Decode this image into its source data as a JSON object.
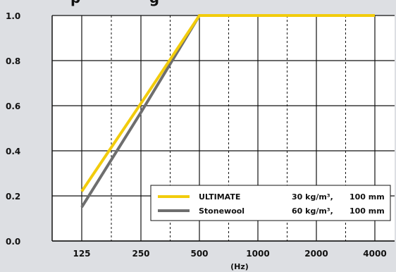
{
  "chart_data": {
    "type": "line",
    "title_fragment": "p              g",
    "xlabel": "(Hz)",
    "ylabel": "",
    "categories": [
      "125",
      "250",
      "500",
      "1000",
      "2000",
      "4000"
    ],
    "yticks": [
      "0.0",
      "0.2",
      "0.4",
      "0.6",
      "0.8",
      "1.0"
    ],
    "ylim": [
      0,
      1
    ],
    "grid": true,
    "legend_position": "bottom-right",
    "series": [
      {
        "name": "ULTIMATE",
        "density": "30 kg/m³,",
        "thickness": "100 mm",
        "color": "#f2cc0c",
        "values": [
          0.22,
          0.61,
          1.0,
          1.0,
          1.0,
          1.0
        ]
      },
      {
        "name": "Stonewool",
        "density": "60 kg/m³,",
        "thickness": "100 mm",
        "color": "#6e6e6e",
        "values": [
          0.15,
          0.57,
          1.0,
          1.0,
          1.0,
          1.0
        ]
      }
    ]
  },
  "style": {
    "plot_bg": "#ffffff",
    "page_bg": "#dddfe3",
    "grid_color": "#111111"
  }
}
